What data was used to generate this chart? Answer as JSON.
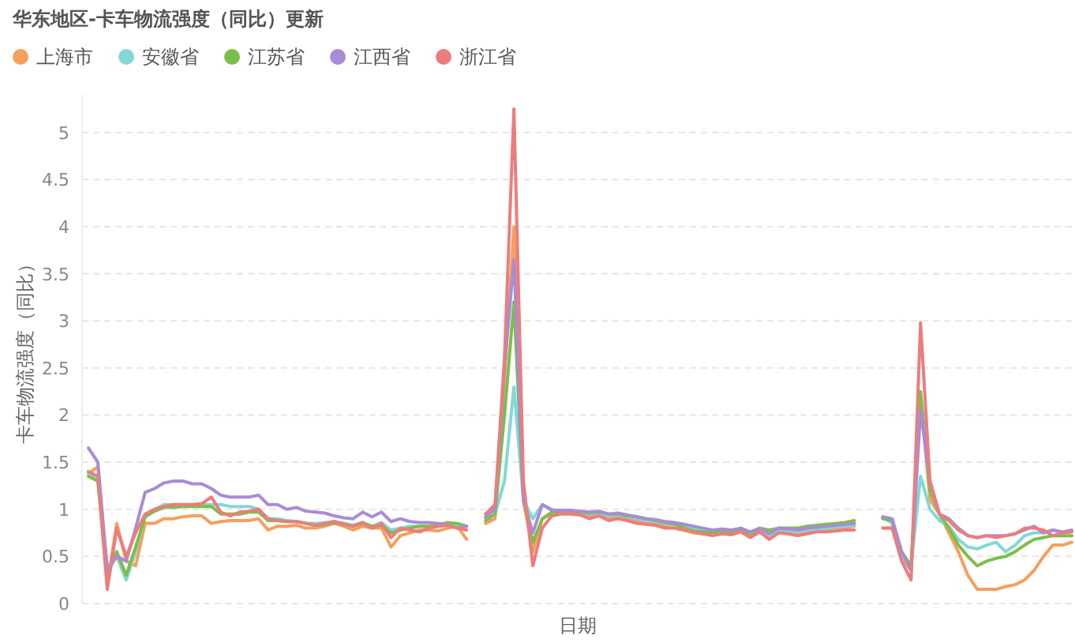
{
  "chart_data": {
    "type": "line",
    "title": "华东地区-卡车物流强度（同比）更新",
    "xlabel": "日期",
    "ylabel": "卡车物流强度（同比）",
    "categories": [
      null,
      null,
      null,
      null,
      null,
      null,
      null,
      null,
      null,
      null,
      null,
      null,
      null,
      null,
      null,
      null,
      null,
      null,
      null,
      null,
      null,
      null,
      null,
      null,
      null,
      null,
      null,
      null,
      null,
      null,
      null,
      null,
      null,
      null,
      null,
      null,
      null,
      null,
      null,
      null,
      null,
      null,
      null,
      null,
      null,
      null,
      null,
      null,
      null,
      null,
      null,
      null,
      null,
      null,
      null,
      null,
      null,
      null,
      null,
      null,
      null,
      null,
      null,
      null,
      null,
      null,
      null,
      null,
      null,
      null,
      null,
      null,
      null,
      null,
      null,
      null,
      null,
      null,
      null,
      null,
      null,
      null,
      null,
      null,
      null,
      null,
      null,
      null,
      null,
      null,
      null,
      null,
      null,
      null,
      null,
      null,
      null,
      null,
      null,
      null,
      null,
      null,
      null,
      null,
      null
    ],
    "series": [
      {
        "name": "上海市",
        "color": "#f4a05c",
        "values": [
          1.38,
          1.45,
          0.2,
          0.85,
          0.45,
          0.4,
          0.85,
          0.85,
          0.9,
          0.9,
          0.92,
          0.93,
          0.93,
          0.85,
          0.87,
          0.88,
          0.88,
          0.88,
          0.9,
          0.78,
          0.82,
          0.82,
          0.83,
          0.8,
          0.8,
          0.82,
          0.85,
          0.82,
          0.78,
          0.82,
          0.8,
          0.8,
          0.6,
          0.72,
          0.75,
          0.78,
          0.78,
          0.77,
          0.8,
          0.82,
          0.68,
          null,
          0.85,
          0.9,
          2.4,
          4.0,
          1.1,
          0.55,
          0.9,
          0.95,
          0.96,
          0.96,
          0.95,
          0.93,
          0.95,
          0.9,
          0.92,
          0.9,
          0.87,
          0.86,
          0.84,
          0.82,
          0.8,
          0.78,
          0.75,
          0.74,
          0.73,
          0.75,
          0.74,
          0.77,
          0.71,
          0.77,
          0.7,
          0.77,
          0.76,
          0.75,
          0.77,
          0.78,
          0.79,
          0.8,
          0.81,
          0.82,
          null,
          null,
          0.8,
          0.8,
          0.5,
          0.35,
          2.2,
          1.1,
          0.95,
          0.75,
          0.55,
          0.3,
          0.15,
          0.15,
          0.15,
          0.18,
          0.2,
          0.25,
          0.35,
          0.5,
          0.62,
          0.62,
          0.65
        ]
      },
      {
        "name": "安徽省",
        "color": "#82d8d4",
        "values": [
          1.38,
          1.3,
          0.4,
          0.5,
          0.25,
          0.55,
          0.93,
          1.0,
          1.05,
          1.05,
          1.05,
          1.05,
          1.05,
          1.05,
          1.05,
          1.03,
          1.03,
          1.03,
          1.0,
          0.9,
          0.9,
          0.88,
          0.87,
          0.85,
          0.85,
          0.86,
          0.87,
          0.85,
          0.83,
          0.86,
          0.82,
          0.86,
          0.78,
          0.8,
          0.82,
          0.82,
          0.82,
          0.83,
          0.85,
          0.84,
          0.82,
          null,
          0.9,
          0.95,
          1.3,
          2.3,
          1.1,
          0.9,
          1.05,
          1.0,
          0.97,
          0.97,
          0.96,
          0.95,
          0.96,
          0.93,
          0.94,
          0.92,
          0.9,
          0.88,
          0.87,
          0.85,
          0.84,
          0.82,
          0.8,
          0.78,
          0.76,
          0.77,
          0.76,
          0.78,
          0.74,
          0.78,
          0.72,
          0.78,
          0.77,
          0.76,
          0.78,
          0.79,
          0.8,
          0.81,
          0.82,
          0.83,
          null,
          null,
          0.92,
          0.85,
          0.5,
          0.4,
          1.35,
          1.0,
          0.88,
          0.82,
          0.68,
          0.6,
          0.58,
          0.62,
          0.65,
          0.55,
          0.62,
          0.72,
          0.75,
          0.75,
          0.78,
          0.75,
          0.76
        ]
      },
      {
        "name": "江苏省",
        "color": "#7cbf48",
        "values": [
          1.35,
          1.3,
          0.3,
          0.55,
          0.3,
          0.6,
          0.92,
          0.98,
          1.02,
          1.02,
          1.03,
          1.03,
          1.03,
          1.03,
          0.95,
          0.95,
          0.95,
          0.97,
          0.97,
          0.88,
          0.88,
          0.87,
          0.87,
          0.85,
          0.83,
          0.84,
          0.86,
          0.85,
          0.82,
          0.85,
          0.82,
          0.83,
          0.75,
          0.78,
          0.8,
          0.82,
          0.82,
          0.83,
          0.86,
          0.85,
          0.82,
          null,
          0.88,
          0.95,
          2.0,
          3.2,
          1.1,
          0.65,
          0.9,
          0.97,
          0.97,
          0.98,
          0.97,
          0.96,
          0.97,
          0.95,
          0.95,
          0.93,
          0.92,
          0.9,
          0.88,
          0.86,
          0.84,
          0.8,
          0.77,
          0.76,
          0.75,
          0.77,
          0.76,
          0.78,
          0.72,
          0.8,
          0.78,
          0.8,
          0.8,
          0.8,
          0.82,
          0.83,
          0.84,
          0.85,
          0.86,
          0.88,
          null,
          null,
          0.9,
          0.88,
          0.55,
          0.4,
          2.25,
          1.2,
          0.95,
          0.8,
          0.62,
          0.5,
          0.4,
          0.45,
          0.48,
          0.5,
          0.55,
          0.62,
          0.68,
          0.7,
          0.72,
          0.72,
          0.72
        ]
      },
      {
        "name": "江西省",
        "color": "#a98bd8",
        "values": [
          1.65,
          1.5,
          0.35,
          0.5,
          0.45,
          0.8,
          1.18,
          1.22,
          1.28,
          1.3,
          1.3,
          1.27,
          1.27,
          1.22,
          1.15,
          1.13,
          1.13,
          1.13,
          1.15,
          1.05,
          1.05,
          1.0,
          1.02,
          0.98,
          0.97,
          0.96,
          0.93,
          0.91,
          0.9,
          0.97,
          0.92,
          0.97,
          0.87,
          0.9,
          0.87,
          0.86,
          0.86,
          0.85,
          0.84,
          0.8,
          0.82,
          null,
          0.92,
          1.0,
          2.5,
          3.65,
          1.1,
          0.75,
          1.05,
          0.99,
          0.99,
          0.99,
          0.98,
          0.97,
          0.98,
          0.95,
          0.96,
          0.94,
          0.92,
          0.9,
          0.89,
          0.87,
          0.86,
          0.84,
          0.82,
          0.8,
          0.78,
          0.79,
          0.78,
          0.8,
          0.76,
          0.8,
          0.74,
          0.8,
          0.79,
          0.78,
          0.8,
          0.81,
          0.82,
          0.83,
          0.84,
          0.85,
          null,
          null,
          0.92,
          0.9,
          0.55,
          0.35,
          2.05,
          1.3,
          0.95,
          0.9,
          0.8,
          0.72,
          0.7,
          0.72,
          0.72,
          0.72,
          0.74,
          0.78,
          0.82,
          0.75,
          0.78,
          0.76,
          0.78
        ]
      },
      {
        "name": "浙江省",
        "color": "#ec7d7d",
        "values": [
          1.4,
          1.35,
          0.15,
          0.8,
          0.5,
          0.75,
          0.95,
          1.0,
          1.03,
          1.05,
          1.05,
          1.05,
          1.06,
          1.13,
          0.97,
          0.93,
          0.97,
          0.98,
          1.0,
          0.9,
          0.88,
          0.87,
          0.87,
          0.85,
          0.83,
          0.85,
          0.87,
          0.84,
          0.82,
          0.86,
          0.8,
          0.85,
          0.7,
          0.8,
          0.78,
          0.76,
          0.8,
          0.82,
          0.83,
          0.8,
          0.78,
          null,
          0.95,
          1.05,
          2.6,
          5.25,
          1.3,
          0.4,
          0.8,
          0.93,
          0.95,
          0.95,
          0.94,
          0.9,
          0.93,
          0.88,
          0.9,
          0.88,
          0.85,
          0.84,
          0.83,
          0.8,
          0.8,
          0.78,
          0.76,
          0.74,
          0.72,
          0.74,
          0.73,
          0.76,
          0.7,
          0.76,
          0.68,
          0.75,
          0.74,
          0.72,
          0.74,
          0.76,
          0.76,
          0.77,
          0.78,
          0.78,
          null,
          null,
          0.8,
          0.8,
          0.45,
          0.25,
          2.98,
          1.3,
          0.95,
          0.88,
          0.78,
          0.72,
          0.7,
          0.72,
          0.7,
          0.72,
          0.74,
          0.8,
          0.8,
          0.78,
          0.72,
          0.75,
          0.76
        ]
      }
    ],
    "ylim": [
      0,
      5.4
    ],
    "yticks": [
      0,
      0.5,
      1,
      1.5,
      2,
      2.5,
      3,
      3.5,
      4,
      4.5,
      5
    ],
    "grid": "y",
    "legend": "top left"
  }
}
